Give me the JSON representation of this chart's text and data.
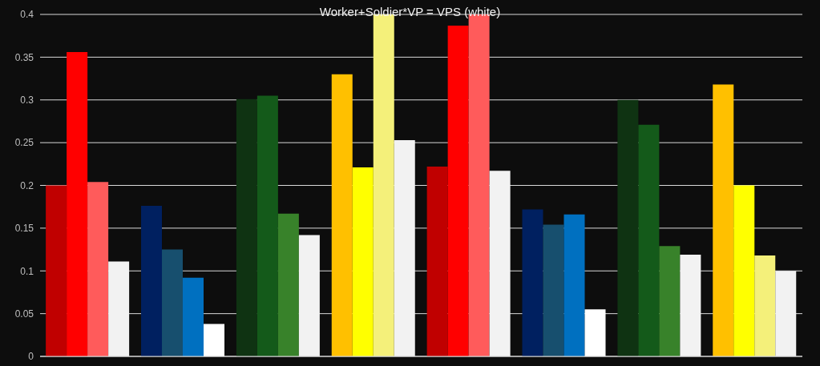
{
  "chart_data": {
    "type": "bar",
    "title": "Worker+Soldier*VP = VPS (white)",
    "categories": [
      null,
      null,
      null,
      null,
      null,
      null,
      null,
      null
    ],
    "series": [
      {
        "colors": [
          "#c00000",
          "#002060",
          "#0f3312",
          "#ffc000",
          "#c00000",
          "#002060",
          "#0f3312",
          "#ffc000"
        ],
        "values": [
          0.2,
          0.176,
          0.301,
          0.33,
          0.222,
          0.172,
          0.3,
          0.318
        ]
      },
      {
        "colors": [
          "#ff0000",
          "#174f6e",
          "#145a1a",
          "#ffff00",
          "#ff0000",
          "#174f6e",
          "#145a1a",
          "#ffff00"
        ],
        "values": [
          0.356,
          0.125,
          0.305,
          0.221,
          0.387,
          0.154,
          0.271,
          0.2
        ]
      },
      {
        "colors": [
          "#ff5b5b",
          "#0070c0",
          "#38822a",
          "#f4f07a",
          "#ff5b5b",
          "#0070c0",
          "#38822a",
          "#f4f07a"
        ],
        "values": [
          0.204,
          0.092,
          0.167,
          0.4,
          0.4,
          0.166,
          0.129,
          0.118
        ]
      },
      {
        "colors": [
          "#f2f2f2",
          "#ffffff",
          "#f2f2f2",
          "#f2f2f2",
          "#f2f2f2",
          "#ffffff",
          "#f2f2f2",
          "#f2f2f2"
        ],
        "values": [
          0.111,
          0.038,
          0.142,
          0.253,
          0.217,
          0.055,
          0.119,
          0.1
        ]
      }
    ],
    "ylim": [
      0,
      0.4
    ],
    "yticks": [
      0,
      0.05,
      0.1,
      0.15,
      0.2,
      0.25,
      0.3,
      0.35,
      0.4
    ],
    "grid": "y",
    "tick_labels": "y"
  }
}
